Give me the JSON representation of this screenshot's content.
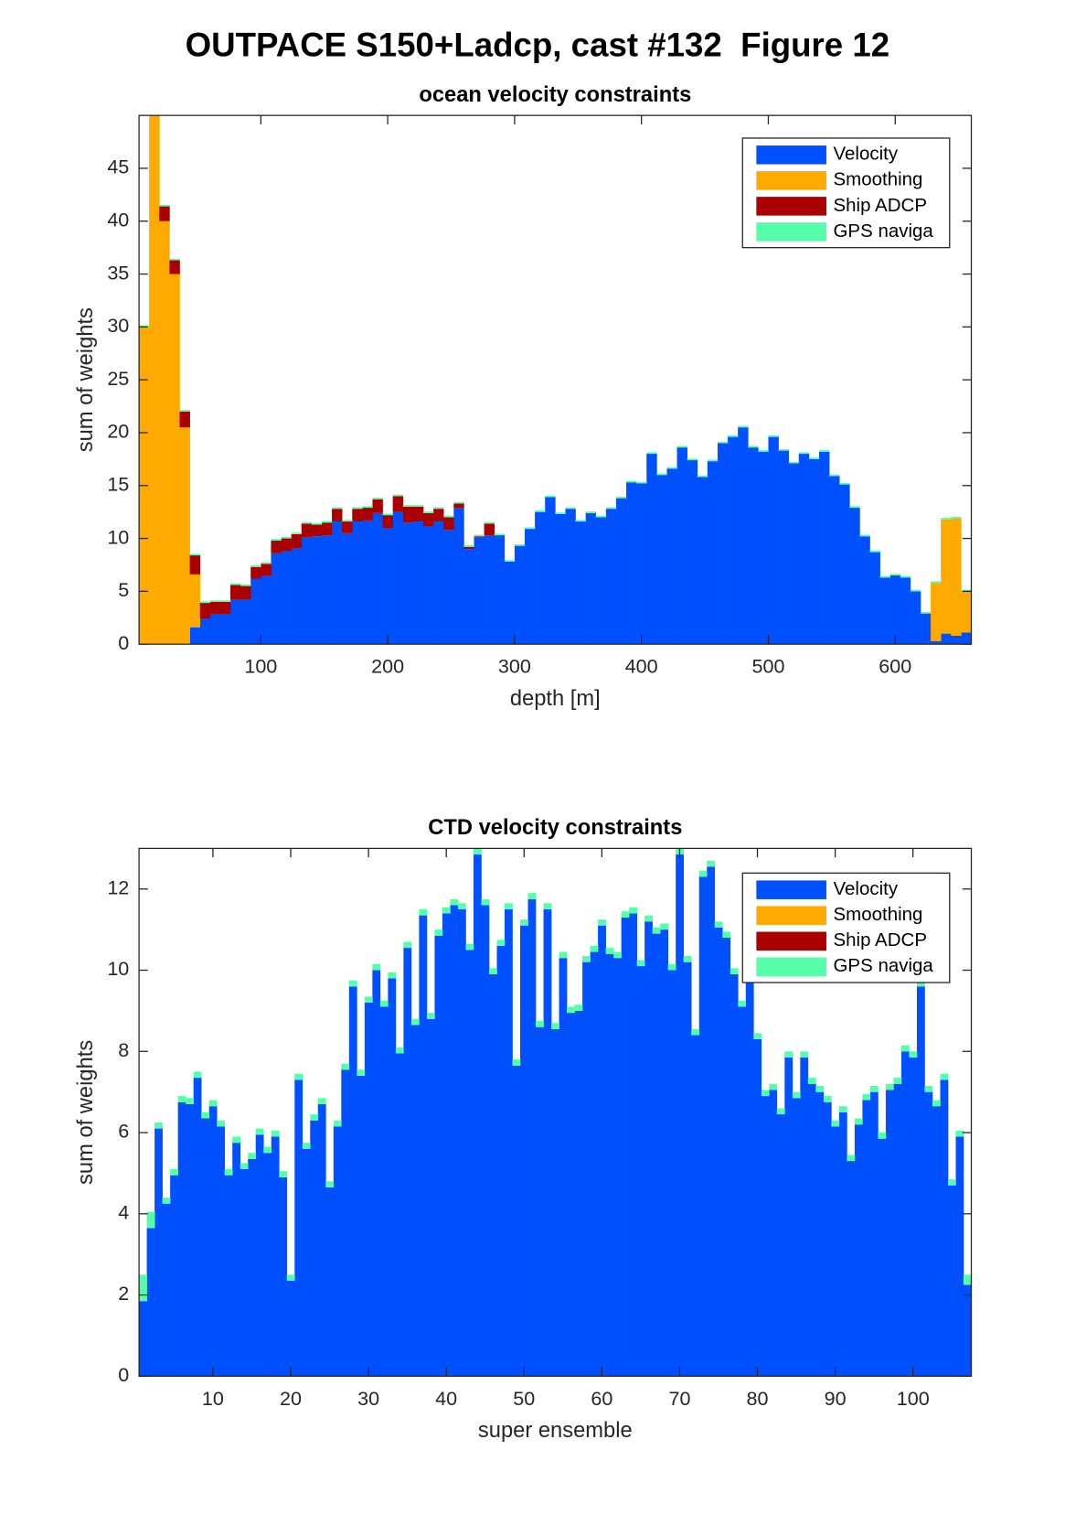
{
  "title": "OUTPACE S150+Ladcp, cast #132  Figure 12",
  "chart_data": [
    {
      "type": "bar",
      "stacked": true,
      "title": "ocean velocity constraints",
      "xlabel": "depth [m]",
      "ylabel": "sum of weights",
      "x": [
        8,
        16,
        24,
        32,
        40,
        48,
        56,
        64,
        72,
        80,
        88,
        96,
        104,
        112,
        120,
        128,
        136,
        144,
        152,
        160,
        168,
        176,
        184,
        192,
        200,
        208,
        216,
        224,
        232,
        240,
        248,
        256,
        264,
        272,
        280,
        288,
        296,
        304,
        312,
        320,
        328,
        336,
        344,
        352,
        360,
        368,
        376,
        384,
        392,
        400,
        408,
        416,
        424,
        432,
        440,
        448,
        456,
        464,
        472,
        480,
        488,
        496,
        504,
        512,
        520,
        528,
        536,
        544,
        552,
        560,
        568,
        576,
        584,
        592,
        600,
        608,
        616,
        624,
        632,
        640,
        648,
        656
      ],
      "xlim": [
        4,
        660
      ],
      "xticks": [
        100,
        200,
        300,
        400,
        500,
        600
      ],
      "ylim": [
        0,
        50
      ],
      "yticks": [
        0,
        5,
        10,
        15,
        20,
        25,
        30,
        35,
        40,
        45
      ],
      "legend": "northeast",
      "series": [
        {
          "name": "Velocity",
          "color": "#0050ff",
          "values": [
            0,
            0,
            0,
            0,
            0,
            1.6,
            2.4,
            2.8,
            2.8,
            4.2,
            4.2,
            6.2,
            6.5,
            8.6,
            8.8,
            9.1,
            10.1,
            10.2,
            10.3,
            11.6,
            10.5,
            11.6,
            11.7,
            12.4,
            11.0,
            12.5,
            11.5,
            11.6,
            11.1,
            11.6,
            10.8,
            12.9,
            9.0,
            10.1,
            10.3,
            10.3,
            7.8,
            9.3,
            10.9,
            12.5,
            13.9,
            12.3,
            12.8,
            11.6,
            12.4,
            12.0,
            12.8,
            13.8,
            15.3,
            15.2,
            18.0,
            16.0,
            16.6,
            18.6,
            17.4,
            15.8,
            17.3,
            19.0,
            19.6,
            20.5,
            18.6,
            18.2,
            19.6,
            18.3,
            17.1,
            18.0,
            17.5,
            18.2,
            15.9,
            15.1,
            12.9,
            10.2,
            8.7,
            6.3,
            6.5,
            6.3,
            5.0,
            2.9,
            0.3,
            1.0,
            0.8,
            1.1
          ]
        },
        {
          "name": "Smoothing",
          "color": "#ffaa00",
          "values": [
            30,
            50,
            40,
            35,
            20.5,
            5,
            0,
            0,
            0,
            0,
            0,
            0,
            0,
            0,
            0,
            0,
            0,
            0,
            0,
            0,
            0,
            0,
            0,
            0,
            0,
            0,
            0,
            0,
            0,
            0,
            0,
            0,
            0,
            0,
            0,
            0,
            0,
            0,
            0,
            0,
            0,
            0,
            0,
            0,
            0,
            0,
            0,
            0,
            0,
            0,
            0,
            0,
            0,
            0,
            0,
            0,
            0,
            0,
            0,
            0,
            0,
            0,
            0,
            0,
            0,
            0,
            0,
            0,
            0,
            0,
            0,
            0,
            0,
            0,
            0,
            0,
            0,
            0,
            5.5,
            10.8,
            11.1,
            3.9
          ]
        },
        {
          "name": "Ship ADCP",
          "color": "#aa0000",
          "values": [
            0,
            0,
            1.4,
            1.3,
            1.5,
            1.8,
            1.5,
            1.2,
            1.2,
            1.4,
            1.3,
            1.1,
            1.1,
            1.2,
            1.2,
            1.3,
            1.3,
            1.1,
            1.2,
            1.2,
            1.1,
            1.2,
            1.2,
            1.3,
            1.2,
            1.5,
            1.5,
            1.4,
            1.3,
            1.2,
            1.2,
            0.4,
            0.2,
            0.1,
            1.1,
            0,
            0,
            0,
            0,
            0,
            0,
            0,
            0,
            0,
            0,
            0,
            0,
            0,
            0,
            0,
            0,
            0,
            0,
            0,
            0,
            0,
            0,
            0,
            0,
            0,
            0,
            0,
            0,
            0,
            0,
            0,
            0,
            0,
            0,
            0,
            0,
            0,
            0,
            0,
            0,
            0,
            0,
            0,
            0,
            0,
            0,
            0
          ]
        },
        {
          "name": "GPS naviga",
          "color": "#55ffaa",
          "values": [
            0.15,
            0,
            0.15,
            0.15,
            0.15,
            0.15,
            0.15,
            0.15,
            0.15,
            0.15,
            0.15,
            0.15,
            0.15,
            0.15,
            0.15,
            0.15,
            0.15,
            0.15,
            0.15,
            0.15,
            0.15,
            0.15,
            0.15,
            0.15,
            0.15,
            0.15,
            0.15,
            0.15,
            0.15,
            0.15,
            0.15,
            0.15,
            0.15,
            0.15,
            0.15,
            0.15,
            0.15,
            0.15,
            0.15,
            0.15,
            0.15,
            0.15,
            0.15,
            0.15,
            0.15,
            0.15,
            0.15,
            0.15,
            0.15,
            0.15,
            0.15,
            0.15,
            0.15,
            0.15,
            0.15,
            0.15,
            0.15,
            0.15,
            0.15,
            0.15,
            0.15,
            0.15,
            0.15,
            0.15,
            0.15,
            0.15,
            0.15,
            0.15,
            0.15,
            0.15,
            0.15,
            0.15,
            0.15,
            0.15,
            0.15,
            0.15,
            0.15,
            0.15,
            0.15,
            0.15,
            0.15,
            0.15
          ]
        }
      ]
    },
    {
      "type": "bar",
      "stacked": true,
      "title": "CTD velocity constraints",
      "xlabel": "super ensemble",
      "ylabel": "sum of weights",
      "x": [
        1,
        2,
        3,
        4,
        5,
        6,
        7,
        8,
        9,
        10,
        11,
        12,
        13,
        14,
        15,
        16,
        17,
        18,
        19,
        20,
        21,
        22,
        23,
        24,
        25,
        26,
        27,
        28,
        29,
        30,
        31,
        32,
        33,
        34,
        35,
        36,
        37,
        38,
        39,
        40,
        41,
        42,
        43,
        44,
        45,
        46,
        47,
        48,
        49,
        50,
        51,
        52,
        53,
        54,
        55,
        56,
        57,
        58,
        59,
        60,
        61,
        62,
        63,
        64,
        65,
        66,
        67,
        68,
        69,
        70,
        71,
        72,
        73,
        74,
        75,
        76,
        77,
        78,
        79,
        80,
        81,
        82,
        83,
        84,
        85,
        86,
        87,
        88,
        89,
        90,
        91,
        92,
        93,
        94,
        95,
        96,
        97,
        98,
        99,
        100,
        101,
        102,
        103,
        104,
        105,
        106,
        107
      ],
      "xlim": [
        0.5,
        107.5
      ],
      "xticks": [
        10,
        20,
        30,
        40,
        50,
        60,
        70,
        80,
        90,
        100
      ],
      "ylim": [
        0,
        13
      ],
      "yticks": [
        0,
        2,
        4,
        6,
        8,
        10,
        12
      ],
      "legend": "northeast",
      "series": [
        {
          "name": "Velocity",
          "color": "#0050ff",
          "values": [
            1.85,
            3.65,
            6.1,
            4.25,
            4.95,
            6.75,
            6.7,
            7.35,
            6.35,
            6.65,
            6.15,
            4.95,
            5.75,
            5.1,
            5.35,
            5.95,
            5.5,
            5.9,
            4.9,
            2.35,
            7.3,
            5.6,
            6.3,
            6.7,
            4.65,
            6.15,
            7.55,
            9.6,
            7.4,
            9.2,
            10.0,
            9.1,
            9.8,
            7.95,
            10.55,
            8.65,
            11.35,
            8.8,
            10.85,
            11.4,
            11.6,
            11.5,
            10.5,
            12.85,
            11.6,
            9.9,
            10.6,
            11.5,
            7.65,
            11.1,
            11.75,
            8.6,
            11.5,
            8.55,
            10.3,
            8.95,
            9.0,
            10.2,
            10.45,
            11.1,
            10.4,
            10.3,
            11.3,
            11.4,
            10.1,
            11.2,
            10.9,
            11.0,
            10.0,
            12.85,
            10.2,
            8.4,
            12.3,
            12.55,
            11.05,
            10.8,
            9.9,
            9.1,
            9.8,
            8.3,
            6.9,
            7.05,
            6.45,
            7.85,
            6.85,
            7.85,
            7.2,
            7.0,
            6.75,
            6.15,
            6.5,
            5.3,
            6.2,
            6.8,
            7.0,
            5.85,
            7.05,
            7.2,
            8.0,
            7.85,
            9.6,
            7.0,
            6.65,
            7.3,
            4.7,
            5.9,
            2.25
          ]
        },
        {
          "name": "Smoothing",
          "color": "#ffaa00"
        },
        {
          "name": "Ship ADCP",
          "color": "#aa0000"
        },
        {
          "name": "GPS naviga",
          "color": "#55ffaa",
          "values": [
            0.65,
            0.4,
            0.15,
            0.15,
            0.15,
            0.15,
            0.15,
            0.15,
            0.15,
            0.15,
            0.15,
            0.15,
            0.15,
            0.15,
            0.15,
            0.15,
            0.15,
            0.15,
            0.15,
            0.15,
            0.15,
            0.15,
            0.15,
            0.15,
            0.15,
            0.15,
            0.15,
            0.15,
            0.15,
            0.15,
            0.15,
            0.15,
            0.15,
            0.15,
            0.15,
            0.15,
            0.15,
            0.15,
            0.15,
            0.15,
            0.15,
            0.15,
            0.15,
            0.15,
            0.15,
            0.15,
            0.15,
            0.15,
            0.15,
            0.15,
            0.15,
            0.15,
            0.15,
            0.15,
            0.15,
            0.15,
            0.15,
            0.15,
            0.15,
            0.15,
            0.15,
            0.15,
            0.15,
            0.15,
            0.15,
            0.15,
            0.15,
            0.15,
            0.15,
            0.15,
            0.15,
            0.15,
            0.15,
            0.15,
            0.15,
            0.15,
            0.15,
            0.15,
            0.15,
            0.15,
            0.15,
            0.15,
            0.15,
            0.15,
            0.15,
            0.15,
            0.15,
            0.15,
            0.15,
            0.15,
            0.15,
            0.15,
            0.15,
            0.15,
            0.15,
            0.15,
            0.15,
            0.15,
            0.15,
            0.15,
            0.15,
            0.15,
            0.15,
            0.15,
            0.15,
            0.15,
            0.25
          ]
        }
      ]
    }
  ]
}
